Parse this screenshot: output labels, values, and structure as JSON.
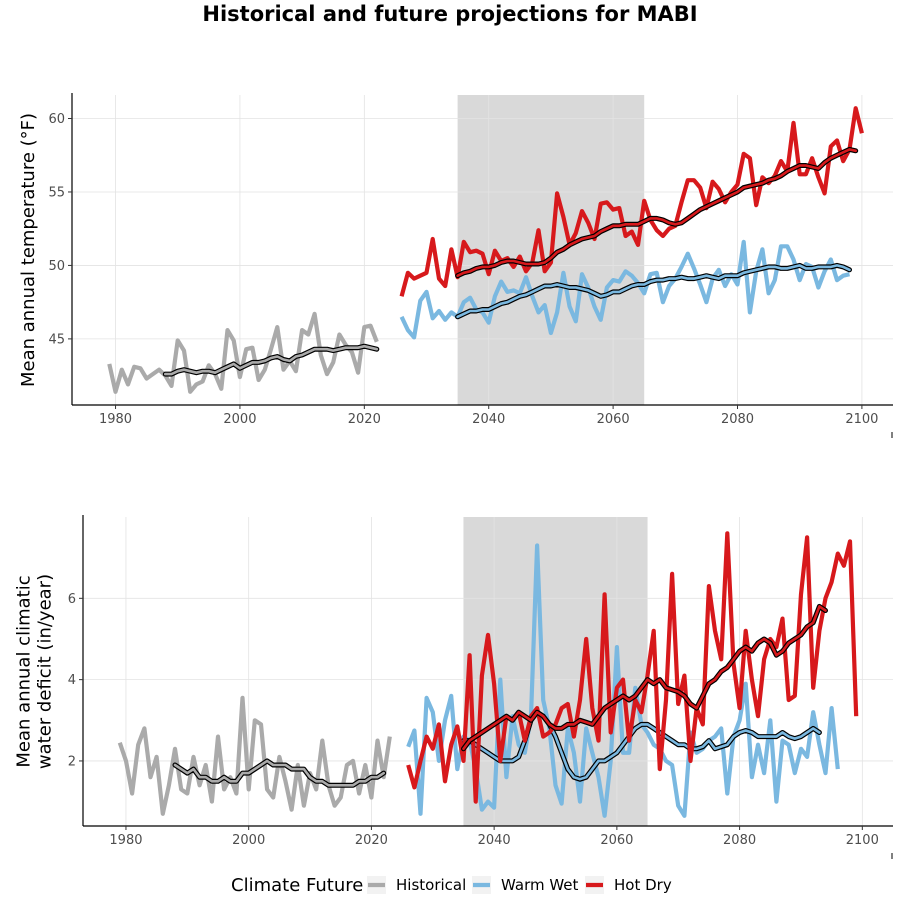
{
  "title": "Historical and future projections for MABI",
  "legend": {
    "title": "Climate Future",
    "placement": "bottom",
    "items": [
      {
        "label": "Historical",
        "color": "#aaaaaa"
      },
      {
        "label": "Warm Wet",
        "color": "#7ab8e0"
      },
      {
        "label": "Hot Dry",
        "color": "#d7191c"
      }
    ]
  },
  "chart_data": [
    {
      "type": "line",
      "ylabel": [
        "Mean annual temperature (°F)"
      ],
      "xlim": [
        1973,
        2105
      ],
      "ylim": [
        40.5,
        61.6
      ],
      "xticks": [
        1980,
        2000,
        2020,
        2040,
        2060,
        2080,
        2100
      ],
      "yticks": [
        45,
        50,
        55,
        60
      ],
      "grid": true,
      "shaded_period": [
        2035,
        2065
      ],
      "series": [
        {
          "name": "Historical",
          "color": "#aaaaaa",
          "x_start": 1979,
          "values": [
            43.3,
            41.4,
            42.9,
            41.9,
            43.1,
            43.0,
            42.3,
            42.6,
            42.9,
            42.5,
            41.8,
            44.9,
            44.2,
            41.4,
            41.9,
            42.1,
            43.2,
            42.6,
            41.6,
            45.6,
            44.9,
            42.4,
            44.3,
            44.4,
            42.2,
            42.9,
            44.3,
            45.8,
            42.9,
            43.5,
            42.8,
            45.6,
            45.3,
            46.7,
            43.9,
            42.6,
            43.4,
            45.3,
            44.6,
            44.1,
            42.7,
            45.8,
            45.9,
            44.8
          ]
        },
        {
          "name": "Historical smoothed",
          "color": "#aaaaaa",
          "x_start": 1988,
          "values": [
            42.6,
            42.6,
            42.8,
            42.9,
            42.8,
            42.7,
            42.8,
            42.8,
            42.7,
            42.9,
            43.1,
            43.3,
            43.0,
            43.2,
            43.4,
            43.4,
            43.5,
            43.7,
            43.8,
            43.6,
            43.5,
            43.8,
            43.9,
            44.1,
            44.3,
            44.3,
            44.3,
            44.2,
            44.3,
            44.4,
            44.4,
            44.4,
            44.5,
            44.4,
            44.3
          ]
        },
        {
          "name": "Warm Wet",
          "color": "#7ab8e0",
          "x_start": 2026,
          "values": [
            46.5,
            45.6,
            45.1,
            47.6,
            48.2,
            46.4,
            46.9,
            46.3,
            46.8,
            46.5,
            47.5,
            47.8,
            47.0,
            46.8,
            46.1,
            47.9,
            48.9,
            48.2,
            48.3,
            48.1,
            49.2,
            47.9,
            46.8,
            47.3,
            45.4,
            46.8,
            49.5,
            47.2,
            46.2,
            49.4,
            48.5,
            47.2,
            46.3,
            48.5,
            49.0,
            48.9,
            49.6,
            49.3,
            48.8,
            48.1,
            49.4,
            49.5,
            47.5,
            48.6,
            49.1,
            49.9,
            50.8,
            49.8,
            48.7,
            47.5,
            49.1,
            49.7,
            48.6,
            49.4,
            48.7,
            51.6,
            46.8,
            49.6,
            51.1,
            48.1,
            49.0,
            51.3,
            51.3,
            50.4,
            49.0,
            50.1,
            49.9,
            48.5,
            49.6,
            50.4,
            49.0,
            49.3,
            49.4
          ]
        },
        {
          "name": "Warm Wet smoothed",
          "color": "#7ab8e0",
          "x_start": 2035,
          "values": [
            46.5,
            46.7,
            46.9,
            46.9,
            47.0,
            47.0,
            47.2,
            47.4,
            47.5,
            47.7,
            47.9,
            48.0,
            48.2,
            48.4,
            48.6,
            48.6,
            48.7,
            48.6,
            48.5,
            48.5,
            48.4,
            48.3,
            48.1,
            47.9,
            48.0,
            48.2,
            48.2,
            48.4,
            48.6,
            48.7,
            48.7,
            48.9,
            49.0,
            49.0,
            49.1,
            49.1,
            49.2,
            49.1,
            49.1,
            49.2,
            49.3,
            49.2,
            49.1,
            49.3,
            49.3,
            49.3,
            49.5,
            49.6,
            49.7,
            49.8,
            49.9,
            49.9,
            49.8,
            49.8,
            49.9,
            50.0,
            49.8,
            49.8,
            49.9,
            49.9,
            49.9,
            50.0,
            49.9,
            49.7
          ]
        },
        {
          "name": "Hot Dry",
          "color": "#d7191c",
          "x_start": 2026,
          "values": [
            47.9,
            49.5,
            49.1,
            49.3,
            49.5,
            51.8,
            49.1,
            48.6,
            51.1,
            49.2,
            51.6,
            50.9,
            51.0,
            50.8,
            49.4,
            51.0,
            50.3,
            50.5,
            49.9,
            50.6,
            49.6,
            50.2,
            52.4,
            49.6,
            50.2,
            54.9,
            53.3,
            51.4,
            52.2,
            53.7,
            52.9,
            51.8,
            54.2,
            54.3,
            53.8,
            53.9,
            52.0,
            52.3,
            51.4,
            54.4,
            53.1,
            52.4,
            52.0,
            52.5,
            52.7,
            54.3,
            55.8,
            55.8,
            55.3,
            53.9,
            55.7,
            55.2,
            54.3,
            55.0,
            55.5,
            57.6,
            57.3,
            54.1,
            56.0,
            55.6,
            56.1,
            57.1,
            56.4,
            59.7,
            56.2,
            56.2,
            57.3,
            56.0,
            54.9,
            58.1,
            58.5,
            57.1,
            57.9,
            60.7,
            59.0
          ]
        },
        {
          "name": "Hot Dry smoothed",
          "color": "#d7191c",
          "x_start": 2035,
          "values": [
            49.3,
            49.5,
            49.6,
            49.8,
            49.9,
            49.9,
            50.0,
            50.2,
            50.3,
            50.3,
            50.2,
            50.1,
            50.1,
            50.1,
            50.2,
            50.5,
            50.9,
            51.1,
            51.4,
            51.6,
            51.8,
            51.9,
            52.0,
            52.3,
            52.5,
            52.7,
            52.7,
            52.8,
            52.8,
            52.8,
            53.0,
            53.2,
            53.2,
            53.1,
            52.9,
            52.8,
            52.9,
            53.2,
            53.5,
            53.8,
            54.0,
            54.2,
            54.4,
            54.6,
            54.8,
            55.0,
            55.3,
            55.4,
            55.5,
            55.6,
            55.8,
            55.9,
            56.1,
            56.4,
            56.6,
            56.8,
            56.8,
            56.7,
            56.6,
            57.0,
            57.3,
            57.5,
            57.7,
            57.9,
            57.8
          ]
        }
      ]
    },
    {
      "type": "line",
      "ylabel": [
        "Mean annual climatic",
        "water deficit (in/year)"
      ],
      "xlim": [
        1973,
        2105
      ],
      "ylim": [
        0.4,
        8.0
      ],
      "xticks": [
        1980,
        2000,
        2020,
        2040,
        2060,
        2080,
        2100
      ],
      "yticks": [
        2,
        4,
        6
      ],
      "grid": true,
      "shaded_period": [
        2035,
        2065
      ],
      "series": [
        {
          "name": "Historical",
          "color": "#aaaaaa",
          "x_start": 1979,
          "values": [
            2.45,
            2.0,
            1.2,
            2.4,
            2.8,
            1.6,
            2.1,
            0.7,
            1.4,
            2.3,
            1.3,
            1.2,
            2.1,
            1.4,
            1.9,
            1.0,
            2.6,
            1.3,
            1.6,
            1.2,
            3.55,
            1.3,
            3.0,
            2.9,
            1.3,
            1.1,
            2.1,
            1.5,
            0.8,
            1.9,
            0.9,
            1.7,
            1.3,
            2.5,
            1.4,
            0.9,
            1.1,
            1.9,
            2.0,
            1.2,
            1.9,
            1.1,
            2.5,
            1.6,
            2.6
          ]
        },
        {
          "name": "Historical smoothed",
          "color": "#aaaaaa",
          "x_start": 1988,
          "values": [
            1.9,
            1.8,
            1.7,
            1.8,
            1.6,
            1.6,
            1.5,
            1.5,
            1.6,
            1.5,
            1.5,
            1.7,
            1.7,
            1.8,
            1.9,
            2.0,
            1.9,
            1.9,
            1.9,
            1.8,
            1.8,
            1.8,
            1.6,
            1.5,
            1.5,
            1.4,
            1.4,
            1.4,
            1.4,
            1.4,
            1.5,
            1.5,
            1.6,
            1.6,
            1.7
          ]
        },
        {
          "name": "Warm Wet",
          "color": "#7ab8e0",
          "x_start": 2026,
          "values": [
            2.35,
            2.75,
            0.7,
            3.55,
            3.2,
            2.0,
            3.0,
            3.6,
            1.8,
            2.6,
            2.5,
            1.8,
            0.8,
            1.0,
            0.85,
            4.0,
            1.6,
            3.1,
            2.4,
            2.2,
            3.1,
            7.3,
            3.5,
            2.8,
            1.4,
            0.95,
            2.8,
            2.2,
            1.0,
            2.8,
            2.2,
            1.6,
            0.65,
            2.0,
            4.8,
            2.2,
            2.2,
            3.8,
            2.9,
            2.7,
            2.4,
            2.3,
            2.0,
            1.9,
            0.9,
            0.65,
            2.7,
            2.2,
            2.3,
            2.5,
            2.6,
            2.8,
            1.2,
            2.6,
            3.0,
            3.9,
            1.6,
            2.4,
            1.7,
            3.0,
            1.0,
            2.5,
            2.4,
            1.7,
            2.3,
            2.1,
            3.2,
            2.4,
            1.7,
            3.3,
            1.8
          ]
        },
        {
          "name": "Warm Wet smoothed",
          "color": "#7ab8e0",
          "x_start": 2035,
          "values": [
            2.5,
            2.5,
            2.4,
            2.3,
            2.2,
            2.1,
            2.0,
            2.0,
            2.0,
            2.1,
            2.5,
            3.0,
            3.2,
            3.1,
            2.9,
            2.6,
            2.2,
            1.8,
            1.6,
            1.55,
            1.6,
            1.8,
            2.0,
            2.0,
            2.1,
            2.2,
            2.4,
            2.6,
            2.8,
            2.9,
            2.9,
            2.8,
            2.7,
            2.6,
            2.5,
            2.4,
            2.4,
            2.3,
            2.3,
            2.35,
            2.5,
            2.3,
            2.35,
            2.4,
            2.6,
            2.7,
            2.75,
            2.7,
            2.6,
            2.6,
            2.6,
            2.6,
            2.7,
            2.6,
            2.55,
            2.6,
            2.7,
            2.8,
            2.7
          ]
        },
        {
          "name": "Hot Dry",
          "color": "#d7191c",
          "x_start": 2026,
          "values": [
            1.9,
            1.35,
            2.0,
            2.6,
            2.3,
            2.9,
            1.5,
            2.4,
            2.85,
            2.0,
            4.6,
            1.0,
            4.1,
            5.1,
            3.9,
            2.0,
            3.1,
            3.0,
            3.2,
            2.5,
            3.1,
            3.3,
            2.6,
            2.7,
            2.9,
            3.3,
            3.4,
            2.6,
            3.5,
            5.0,
            3.3,
            2.5,
            6.1,
            2.7,
            3.8,
            4.0,
            2.5,
            3.5,
            3.2,
            4.1,
            5.2,
            1.8,
            3.5,
            6.6,
            3.4,
            4.1,
            2.0,
            3.3,
            2.9,
            6.3,
            5.2,
            4.5,
            7.6,
            4.4,
            3.3,
            5.2,
            4.0,
            3.1,
            4.5,
            5.0,
            4.8,
            5.5,
            3.5,
            3.6,
            6.1,
            7.5,
            3.8,
            5.2,
            6.0,
            6.4,
            7.1,
            6.8,
            7.4,
            3.1
          ]
        },
        {
          "name": "Hot Dry smoothed",
          "color": "#d7191c",
          "x_start": 2035,
          "values": [
            2.3,
            2.5,
            2.6,
            2.7,
            2.8,
            2.9,
            3.0,
            3.1,
            3.0,
            3.2,
            3.1,
            3.0,
            3.2,
            3.1,
            2.9,
            2.8,
            2.8,
            2.9,
            2.9,
            3.0,
            2.95,
            2.9,
            3.1,
            3.3,
            3.4,
            3.5,
            3.6,
            3.5,
            3.6,
            3.8,
            4.0,
            3.9,
            4.0,
            3.8,
            3.75,
            3.7,
            3.6,
            3.4,
            3.3,
            3.6,
            3.9,
            4.0,
            4.2,
            4.3,
            4.5,
            4.7,
            4.8,
            4.7,
            4.9,
            5.0,
            4.9,
            4.6,
            4.7,
            4.9,
            5.0,
            5.1,
            5.3,
            5.4,
            5.8,
            5.7
          ]
        }
      ]
    }
  ]
}
